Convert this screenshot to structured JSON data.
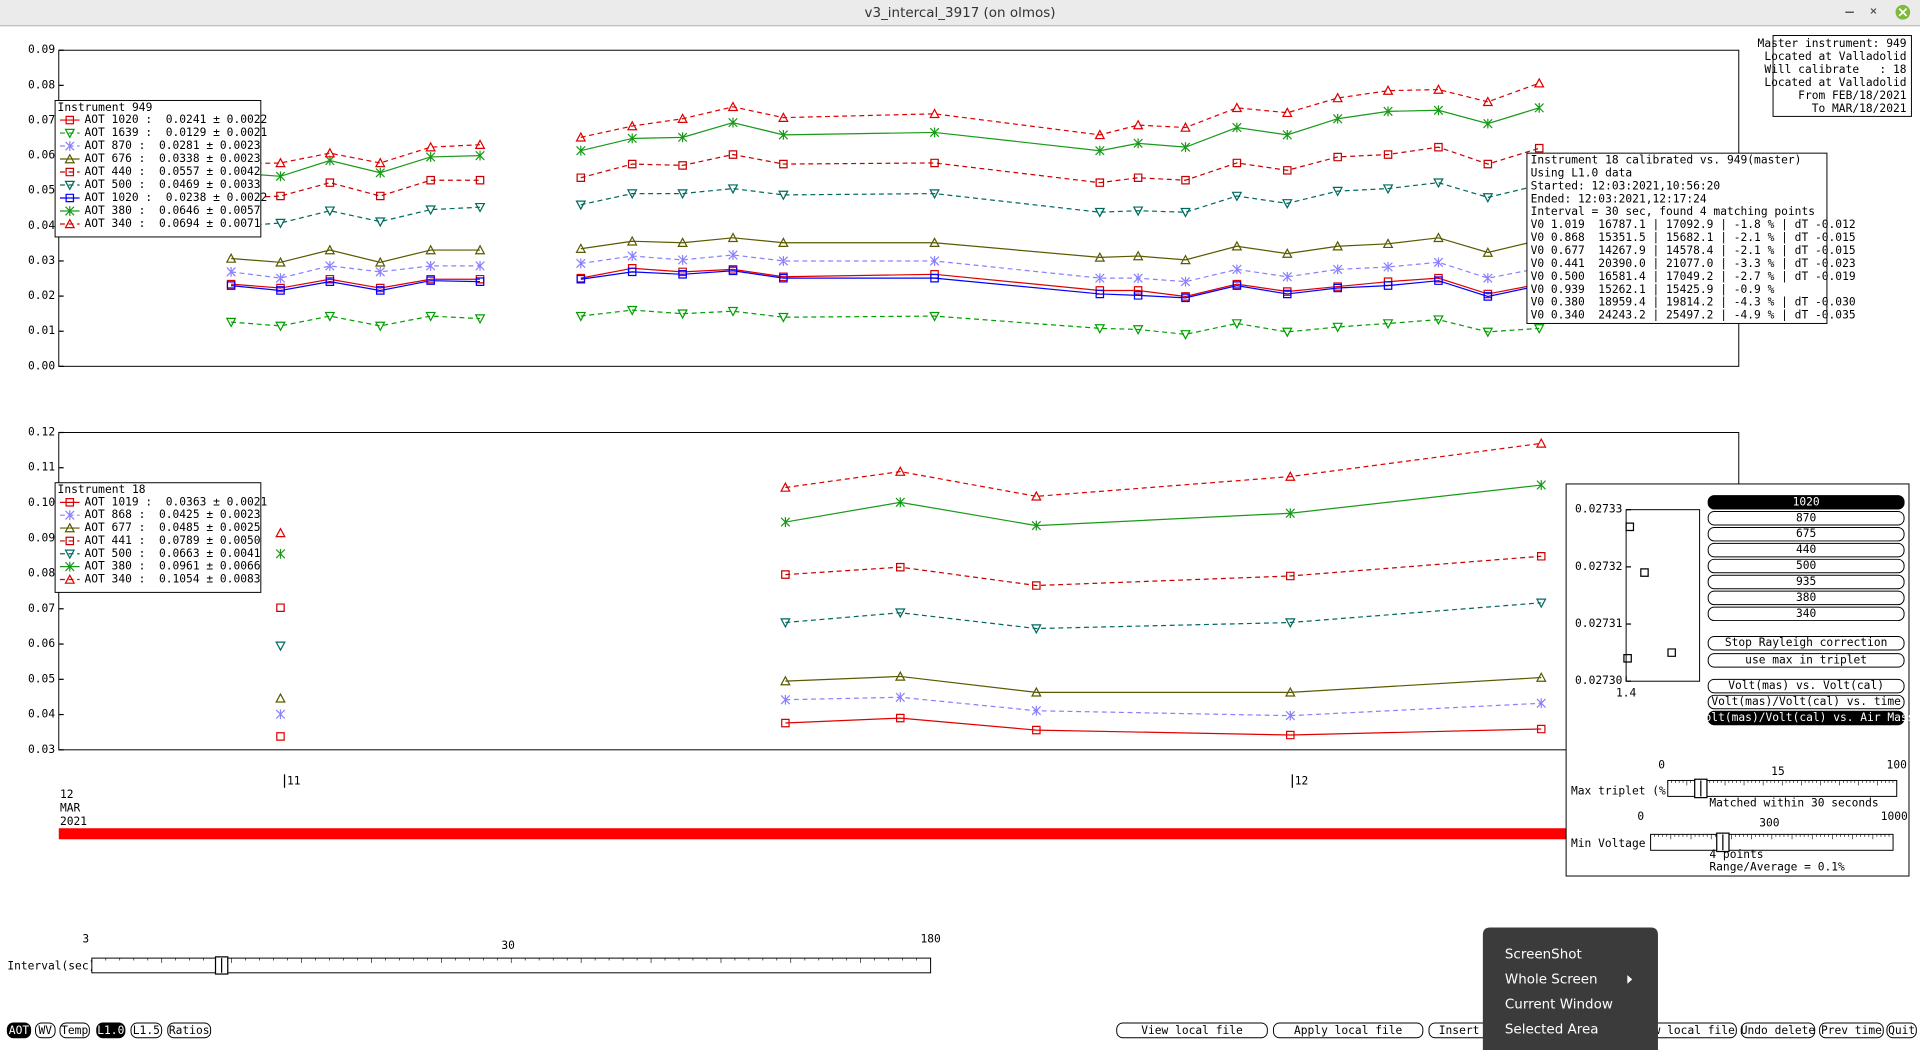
{
  "window": {
    "title": "v3_intercal_3917 (on olmos)"
  },
  "top_chart": {
    "type": "line",
    "xlim": [
      10.776,
      12.443
    ],
    "ylim": [
      0,
      0.09
    ],
    "yticks": [
      {
        "value": 0,
        "label": "0.00"
      },
      0.01,
      0.02,
      0.03,
      0.04,
      0.05,
      0.06,
      0.07,
      0.08,
      0.09
    ],
    "legend": {
      "title": "Instrument 949"
    },
    "x": [
      10.947,
      10.996,
      11.045,
      11.095,
      11.145,
      11.194,
      null,
      11.294,
      11.345,
      11.395,
      11.445,
      11.495,
      11.645,
      11.809,
      11.847,
      11.894,
      11.945,
      11.995,
      12.045,
      12.095,
      12.145,
      12.194,
      12.245
    ],
    "series": [
      {
        "name": "AOT 1020 :  0.0241 ± 0.0022",
        "color": "#e00000",
        "dash": false,
        "marker": "square",
        "values": [
          0.0234,
          0.0223,
          0.0248,
          0.0223,
          0.0248,
          0.0248,
          null,
          0.0251,
          0.0279,
          0.0269,
          0.0276,
          0.0255,
          0.0262,
          0.0216,
          0.0216,
          0.0199,
          0.0234,
          0.0213,
          0.0227,
          0.0241,
          0.0251,
          0.0206,
          0.0234
        ]
      },
      {
        "name": "AOT 1639 :  0.0129 ± 0.0021",
        "color": "#00a000",
        "dash": true,
        "marker": "tri-down",
        "values": [
          0.0126,
          0.0115,
          0.0143,
          0.0115,
          0.0143,
          0.0136,
          null,
          0.0143,
          0.016,
          0.015,
          0.0157,
          0.014,
          0.0143,
          0.0108,
          0.0105,
          0.0091,
          0.0122,
          0.0098,
          0.0112,
          0.0122,
          0.0133,
          0.0098,
          0.0108
        ]
      },
      {
        "name": "AOT 870 :  0.0281 ± 0.0023",
        "color": "#8a80ff",
        "dash": true,
        "marker": "cross",
        "values": [
          0.0269,
          0.0251,
          0.0286,
          0.0269,
          0.0286,
          0.0286,
          null,
          0.0293,
          0.0314,
          0.0303,
          0.0317,
          0.03,
          0.03,
          0.0251,
          0.0251,
          0.0241,
          0.0276,
          0.0255,
          0.0276,
          0.0283,
          0.0296,
          0.0251,
          0.0279
        ]
      },
      {
        "name": "AOT 676 :  0.0338 ± 0.0023",
        "color": "#5a5a00",
        "dash": false,
        "marker": "tri-up",
        "values": [
          0.0307,
          0.0296,
          0.0331,
          0.0296,
          0.0331,
          0.0331,
          null,
          0.0335,
          0.0356,
          0.0352,
          0.0366,
          0.0352,
          0.0352,
          0.031,
          0.0314,
          0.0303,
          0.0342,
          0.0321,
          0.0342,
          0.0349,
          0.0366,
          0.0324,
          0.0359
        ]
      },
      {
        "name": "AOT 440 :  0.0557 ± 0.0042",
        "color": "#c80000",
        "dash": true,
        "marker": "square",
        "values": [
          0.0478,
          0.0485,
          0.0523,
          0.0485,
          0.053,
          0.053,
          null,
          0.0537,
          0.0576,
          0.0572,
          0.0603,
          0.0576,
          0.0579,
          0.0523,
          0.0537,
          0.053,
          0.0579,
          0.0558,
          0.0596,
          0.0603,
          0.0624,
          0.0576,
          0.0621
        ]
      },
      {
        "name": "AOT 500 :  0.0469 ± 0.0033",
        "color": "#006a60",
        "dash": true,
        "marker": "tri-down",
        "values": [
          0.0398,
          0.0408,
          0.0443,
          0.0412,
          0.0446,
          0.0453,
          null,
          0.046,
          0.0492,
          0.0492,
          0.0506,
          0.0488,
          0.0492,
          0.0439,
          0.0443,
          0.0439,
          0.0485,
          0.0464,
          0.0499,
          0.0506,
          0.0523,
          0.0481,
          0.0516
        ]
      },
      {
        "name": "AOT 1020 :  0.0238 ± 0.0022",
        "color": "#0000ff",
        "dash": false,
        "marker": "square",
        "values": [
          0.023,
          0.0216,
          0.0241,
          0.0216,
          0.0244,
          0.0241,
          null,
          0.0248,
          0.0269,
          0.0262,
          0.0272,
          0.0251,
          0.0251,
          0.0206,
          0.0202,
          0.0195,
          0.023,
          0.0206,
          0.0223,
          0.023,
          0.0244,
          0.0199,
          0.023
        ]
      },
      {
        "name": "AOT 380 :  0.0646 ± 0.0057",
        "color": "#189a18",
        "dash": false,
        "marker": "cross",
        "values": [
          0.0551,
          0.0541,
          0.0586,
          0.0551,
          0.0596,
          0.06,
          null,
          0.0614,
          0.0649,
          0.0652,
          0.0694,
          0.0659,
          0.0666,
          0.0614,
          0.0635,
          0.0624,
          0.068,
          0.0659,
          0.0705,
          0.0726,
          0.0729,
          0.0691,
          0.0736
        ]
      },
      {
        "name": "AOT 340 :  0.0694 ± 0.0071",
        "color": "#e00000",
        "dash": true,
        "marker": "tri-up",
        "values": [
          0.0576,
          0.0579,
          0.0607,
          0.0579,
          0.0624,
          0.0631,
          null,
          0.0652,
          0.0684,
          0.0705,
          0.0739,
          0.0708,
          0.0719,
          0.0659,
          0.0687,
          0.068,
          0.0736,
          0.0722,
          0.0764,
          0.0785,
          0.0788,
          0.0753,
          0.0806
        ]
      }
    ]
  },
  "bottom_chart": {
    "type": "line",
    "xlim": [
      10.776,
      12.443
    ],
    "xticks": [
      11,
      12
    ],
    "date_label": [
      "12",
      "MAR",
      "2021"
    ],
    "ylim": [
      0.03,
      0.12
    ],
    "yticks": [
      0.03,
      0.04,
      0.05,
      0.06,
      0.07,
      0.08,
      0.09,
      {
        "value": 0.1,
        "label": "0.10"
      },
      0.11,
      0.12
    ],
    "legend": {
      "title": "Instrument 18"
    },
    "x": [
      10.996,
      null,
      11.497,
      11.611,
      11.746,
      11.998,
      12.247
    ],
    "series": [
      {
        "name": "AOT 1019 :  0.0363 ± 0.0021",
        "color": "#e00000",
        "dash": false,
        "marker": "square",
        "values": [
          0.0338,
          null,
          0.0376,
          0.039,
          0.0356,
          0.0342,
          0.0359
        ]
      },
      {
        "name": "AOT 868 :  0.0425 ± 0.0023",
        "color": "#8a80ff",
        "dash": true,
        "marker": "cross",
        "values": [
          0.0401,
          null,
          0.0442,
          0.0449,
          0.0411,
          0.0397,
          0.0432
        ]
      },
      {
        "name": "AOT 677 :  0.0485 ± 0.0025",
        "color": "#5a5a00",
        "dash": false,
        "marker": "tri-up",
        "values": [
          0.0446,
          null,
          0.0495,
          0.0508,
          0.0463,
          0.0463,
          0.0505
        ]
      },
      {
        "name": "AOT 441 :  0.0789 ± 0.0050",
        "color": "#c80000",
        "dash": true,
        "marker": "square",
        "values": [
          0.0703,
          null,
          0.0797,
          0.0818,
          0.0766,
          0.0793,
          0.0849
        ]
      },
      {
        "name": "AOT 500 :  0.0663 ± 0.0041",
        "color": "#006a60",
        "dash": true,
        "marker": "tri-down",
        "values": [
          0.0595,
          null,
          0.0661,
          0.0689,
          0.0644,
          0.0661,
          0.0717
        ]
      },
      {
        "name": "AOT 380 :  0.0961 ± 0.0066",
        "color": "#189a18",
        "dash": false,
        "marker": "cross",
        "values": [
          0.0856,
          null,
          0.0946,
          0.1002,
          0.0936,
          0.0971,
          0.1051
        ]
      },
      {
        "name": "AOT 340 :  0.1054 ± 0.0083",
        "color": "#e00000",
        "dash": true,
        "marker": "tri-up",
        "values": [
          0.0915,
          null,
          0.1044,
          0.1089,
          0.1019,
          0.1075,
          0.1169
        ]
      }
    ]
  },
  "airmass_chart": {
    "type": "scatter",
    "xlim": [
      1.4,
      1.5
    ],
    "xticks": [
      1.4
    ],
    "ylim": [
      0.0273,
      0.02733
    ],
    "yticks": [
      {
        "value": 0.0273,
        "label": "0.02730"
      },
      0.02731,
      0.02732,
      0.02733
    ],
    "x": [
      1.405,
      1.425,
      1.402,
      1.462
    ],
    "series": [
      {
        "color": "#000000",
        "marker": "square",
        "values": [
          0.027327,
          0.027319,
          0.027304,
          0.027305
        ]
      }
    ]
  },
  "master_box": {
    "lines": [
      "Master instrument: 949",
      "Located at Valladolid",
      "Will calibrate   : 18",
      "Located at Valladolid",
      "From FEB/18/2021",
      "To MAR/18/2021"
    ]
  },
  "calibration_box": {
    "lines": [
      "Instrument 18 calibrated vs. 949(master)",
      "Using L1.0 data",
      "Started: 12:03:2021,10:56:20",
      "Ended: 12:03:2021,12:17:24",
      "Interval = 30 sec, found 4 matching points",
      "V0 1.019  16787.1 | 17092.9 | -1.8 % | dT -0.012",
      "V0 0.868  15351.5 | 15682.1 | -2.1 % | dT -0.015",
      "V0 0.677  14267.9 | 14578.4 | -2.1 % | dT -0.015",
      "V0 0.441  20390.0 | 21077.0 | -3.3 % | dT -0.023",
      "V0 0.500  16581.4 | 17049.2 | -2.7 % | dT -0.019",
      "V0 0.939  15262.1 | 15425.9 | -0.9 %",
      "V0 0.380  18959.4 | 19814.2 | -4.3 % | dT -0.030",
      "V0 0.340  24243.2 | 25497.2 | -4.9 % | dT -0.035"
    ]
  },
  "panel_buttons": [
    {
      "label": "1020",
      "active": true
    },
    {
      "label": "870",
      "active": false
    },
    {
      "label": "675",
      "active": false
    },
    {
      "label": "440",
      "active": false
    },
    {
      "label": "500",
      "active": false
    },
    {
      "label": "935",
      "active": false
    },
    {
      "label": "380",
      "active": false
    },
    {
      "label": "340",
      "active": false
    },
    {
      "label": "Stop Rayleigh correction",
      "active": false
    },
    {
      "label": "use max in triplet",
      "active": false
    },
    {
      "label": "Volt(mas) vs. Volt(cal)",
      "active": false
    },
    {
      "label": "Volt(mas)/Volt(cal) vs. time",
      "active": false
    },
    {
      "label": "Volt(mas)/Volt(cal) vs. Air Mass",
      "active": true
    }
  ],
  "sliders": [
    {
      "label": "Interval(sec)",
      "ticks": [
        3,
        30,
        180
      ],
      "captions": []
    },
    {
      "label": "Max triplet (%)",
      "ticks": [
        0,
        15,
        100
      ],
      "captions": [
        "Matched within 30 seconds"
      ]
    },
    {
      "label": "Min Voltage",
      "ticks": [
        0,
        300,
        1000
      ],
      "captions": [
        "4 points",
        "Range/Average = 0.1%"
      ]
    }
  ],
  "toggles": [
    {
      "label": "AOT",
      "active": true
    },
    {
      "label": "WV",
      "active": false
    },
    {
      "label": "Temp",
      "active": false
    },
    {
      "label": "L1.0",
      "active": true
    },
    {
      "label": "L1.5",
      "active": false
    },
    {
      "label": "Ratios",
      "active": false
    }
  ],
  "bottom_buttons": [
    "View local file",
    "Apply local file",
    "Insert",
    "Start new local file",
    "Undo delete",
    "Prev time",
    "Quit"
  ],
  "context_menu": [
    "ScreenShot",
    "Whole Screen",
    "Current Window",
    "Selected Area"
  ]
}
